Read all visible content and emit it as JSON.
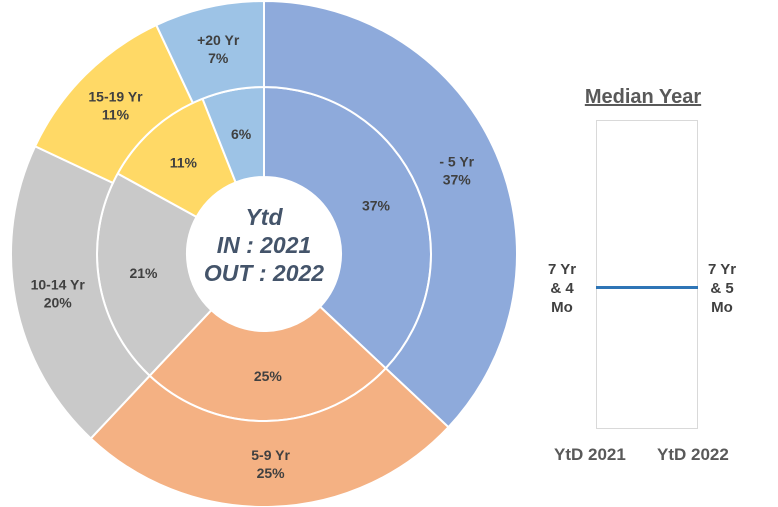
{
  "chart_data": [
    {
      "type": "pie",
      "subtype": "donut",
      "center_title": {
        "line1": "Ytd",
        "line2": "IN : 2021",
        "line3": "OUT : 2022"
      },
      "categories": [
        "- 5 Yr",
        "5-9 Yr",
        "10-14 Yr",
        "15-19 Yr",
        "+20 Yr"
      ],
      "colors": [
        "#8eaadb",
        "#f4b183",
        "#c9c9c9",
        "#ffd966",
        "#9dc3e6"
      ],
      "series": [
        {
          "ring": "inner",
          "values": [
            37,
            25,
            21,
            11,
            6
          ],
          "labels": [
            "37%",
            "25%",
            "21%",
            "11%",
            "6%"
          ]
        },
        {
          "ring": "outer",
          "values": [
            37,
            25,
            20,
            11,
            7
          ],
          "labels": [
            "37%",
            "25%",
            "20%",
            "11%",
            "7%"
          ]
        }
      ]
    },
    {
      "type": "line",
      "title": "Median Year",
      "categories": [
        "YtD 2021",
        "YtD 2022"
      ],
      "value_labels": [
        [
          "7 Yr",
          "& 4",
          "Mo"
        ],
        [
          "7 Yr",
          "& 5",
          "Mo"
        ]
      ],
      "values_months": [
        88,
        89
      ],
      "line_color": "#2e75b6"
    }
  ]
}
